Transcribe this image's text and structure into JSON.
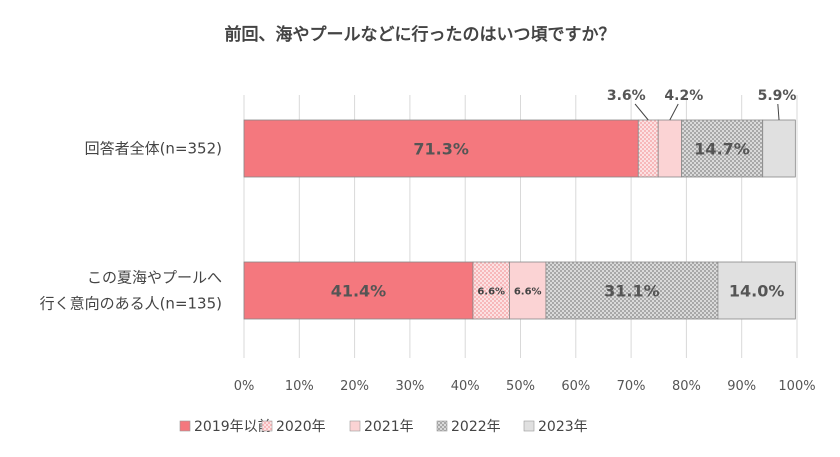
{
  "chart_data": {
    "type": "bar",
    "stacked": true,
    "orientation": "horizontal",
    "title": "前回、海やプールなどに行ったのはいつ頃ですか？",
    "categories": [
      "回答者全体(n=352)",
      "この夏海やプールへ\n行く意向のある人(n=135)"
    ],
    "series": [
      {
        "name": "2019年以前",
        "values": [
          71.3,
          41.4
        ],
        "color": "#f4787e"
      },
      {
        "name": "2020年",
        "values": [
          3.6,
          6.6
        ],
        "color": "#f6a9ac"
      },
      {
        "name": "2021年",
        "values": [
          4.2,
          6.6
        ],
        "color": "#fbd3d4"
      },
      {
        "name": "2022年",
        "values": [
          14.7,
          31.1
        ],
        "color": "#c8c8c8"
      },
      {
        "name": "2023年",
        "values": [
          5.9,
          14.0
        ],
        "color": "#e0e0e0"
      }
    ],
    "data_labels": [
      [
        "71.3%",
        "3.6%",
        "4.2%",
        "14.7%",
        "5.9%"
      ],
      [
        "41.4%",
        "6.6%",
        "6.6%",
        "31.1%",
        "14.0%"
      ]
    ],
    "xticks": [
      "0%",
      "10%",
      "20%",
      "30%",
      "40%",
      "50%",
      "60%",
      "70%",
      "80%",
      "90%",
      "100%"
    ],
    "xlim": [
      0,
      100
    ],
    "grid": true,
    "legend": "bottom"
  }
}
